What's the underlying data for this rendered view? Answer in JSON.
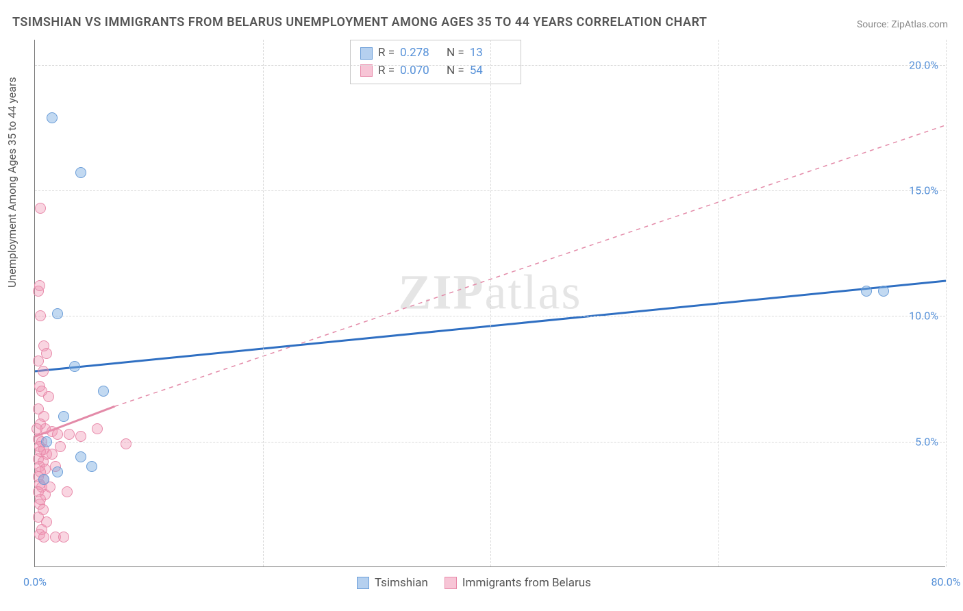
{
  "title": "TSIMSHIAN VS IMMIGRANTS FROM BELARUS UNEMPLOYMENT AMONG AGES 35 TO 44 YEARS CORRELATION CHART",
  "source": "Source: ZipAtlas.com",
  "watermark_main": "ZIP",
  "watermark_sub": "atlas",
  "y_axis_label": "Unemployment Among Ages 35 to 44 years",
  "chart": {
    "type": "scatter",
    "xlim": [
      0,
      80
    ],
    "ylim": [
      0,
      21
    ],
    "x_ticks": [
      0,
      20,
      40,
      60,
      80
    ],
    "x_tick_labels": [
      "0.0%",
      "",
      "",
      "",
      "80.0%"
    ],
    "y_ticks": [
      5,
      10,
      15,
      20
    ],
    "y_tick_labels": [
      "5.0%",
      "10.0%",
      "15.0%",
      "20.0%"
    ],
    "grid_color": "#d9d9d9",
    "background_color": "#ffffff",
    "axis_color": "#777777",
    "tick_label_color": "#5590d8",
    "tick_fontsize": 16,
    "title_fontsize": 18,
    "marker_size": 16
  },
  "series": {
    "tsimshian": {
      "label": "Tsimshian",
      "color_fill": "rgba(120,170,225,0.45)",
      "color_stroke": "#6a9dd8",
      "R": "0.278",
      "N": "13",
      "trend_color": "#2f6fc2",
      "trend_dash": "none",
      "trend_width": 3,
      "trend_start": [
        0,
        7.8
      ],
      "trend_end": [
        80,
        11.4
      ],
      "points": [
        [
          1.5,
          17.9
        ],
        [
          4.0,
          15.7
        ],
        [
          2.0,
          10.1
        ],
        [
          3.5,
          8.0
        ],
        [
          6.0,
          7.0
        ],
        [
          2.5,
          6.0
        ],
        [
          4.0,
          4.4
        ],
        [
          5.0,
          4.0
        ],
        [
          2.0,
          3.8
        ],
        [
          1.0,
          5.0
        ],
        [
          73.0,
          11.0
        ],
        [
          74.5,
          11.0
        ],
        [
          0.8,
          3.5
        ]
      ]
    },
    "belarus": {
      "label": "Immigrants from Belarus",
      "color_fill": "rgba(240,150,180,0.40)",
      "color_stroke": "#e88aaa",
      "R": "0.070",
      "N": "54",
      "trend_color": "#e38aa8",
      "trend_dash": "6,6",
      "trend_width": 1.5,
      "trend_start": [
        0,
        5.2
      ],
      "trend_end": [
        80,
        17.6
      ],
      "solid_portion_end": [
        7,
        6.4
      ],
      "points": [
        [
          0.5,
          14.3
        ],
        [
          0.3,
          11.0
        ],
        [
          0.4,
          11.2
        ],
        [
          0.5,
          10.0
        ],
        [
          0.8,
          8.8
        ],
        [
          1.0,
          8.5
        ],
        [
          0.3,
          8.2
        ],
        [
          0.7,
          7.8
        ],
        [
          0.4,
          7.2
        ],
        [
          0.6,
          7.0
        ],
        [
          1.2,
          6.8
        ],
        [
          0.3,
          6.3
        ],
        [
          0.8,
          6.0
        ],
        [
          0.5,
          5.7
        ],
        [
          0.9,
          5.5
        ],
        [
          1.5,
          5.4
        ],
        [
          2.0,
          5.3
        ],
        [
          3.0,
          5.3
        ],
        [
          0.3,
          5.1
        ],
        [
          0.6,
          5.0
        ],
        [
          0.4,
          4.8
        ],
        [
          0.8,
          4.7
        ],
        [
          0.5,
          4.6
        ],
        [
          1.0,
          4.5
        ],
        [
          0.3,
          4.3
        ],
        [
          0.7,
          4.2
        ],
        [
          0.4,
          4.0
        ],
        [
          0.9,
          3.9
        ],
        [
          0.5,
          3.8
        ],
        [
          0.3,
          3.6
        ],
        [
          0.8,
          3.5
        ],
        [
          0.4,
          3.3
        ],
        [
          0.6,
          3.2
        ],
        [
          0.3,
          3.0
        ],
        [
          0.9,
          2.9
        ],
        [
          0.5,
          2.7
        ],
        [
          0.4,
          2.5
        ],
        [
          0.7,
          2.3
        ],
        [
          0.3,
          2.0
        ],
        [
          1.0,
          1.8
        ],
        [
          0.6,
          1.5
        ],
        [
          0.4,
          1.3
        ],
        [
          0.8,
          1.2
        ],
        [
          1.8,
          1.2
        ],
        [
          2.5,
          1.2
        ],
        [
          1.3,
          3.2
        ],
        [
          1.8,
          4.0
        ],
        [
          1.5,
          4.5
        ],
        [
          2.2,
          4.8
        ],
        [
          2.8,
          3.0
        ],
        [
          8.0,
          4.9
        ],
        [
          5.5,
          5.5
        ],
        [
          4.0,
          5.2
        ],
        [
          0.2,
          5.5
        ]
      ]
    }
  },
  "stats_labels": {
    "R": "R  =",
    "N": "N  ="
  },
  "legend_labels": {
    "tsimshian": "Tsimshian",
    "belarus": "Immigrants from Belarus"
  }
}
